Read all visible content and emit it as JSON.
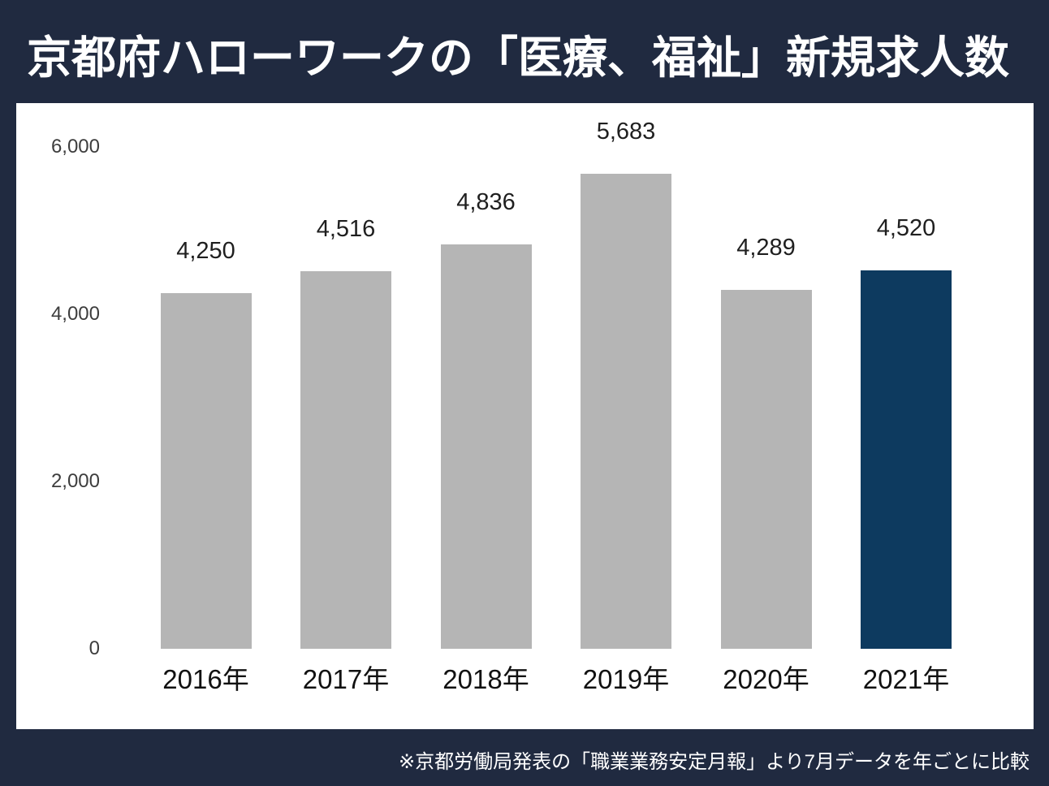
{
  "title": "京都府ハローワークの「医療、福祉」新規求人数",
  "footnote": "※京都労働局発表の「職業業務安定月報」より7月データを年ごとに比較",
  "colors": {
    "background": "#202a40",
    "panel": "#ffffff",
    "bar_default": "#b5b5b5",
    "bar_highlight": "#0d3a5f",
    "value_label": "#1f1f1f",
    "x_axis_label": "#111111",
    "y_axis_label": "#3d3d3d",
    "title_text": "#ffffff"
  },
  "chart_data": {
    "type": "bar",
    "title": "京都府ハローワークの「医療、福祉」新規求人数",
    "categories": [
      "2016年",
      "2017年",
      "2018年",
      "2019年",
      "2020年",
      "2021年"
    ],
    "values": [
      4250,
      4516,
      4836,
      5683,
      4289,
      4520
    ],
    "value_labels": [
      "4,250",
      "4,516",
      "4,836",
      "5,683",
      "4,289",
      "4,520"
    ],
    "highlight_category": "2021年",
    "highlight_index": 5,
    "y_ticks": [
      {
        "label": "6,000",
        "value": 6000
      },
      {
        "label": "4,000",
        "value": 4000
      },
      {
        "label": "2,000",
        "value": 2000
      },
      {
        "label": "0",
        "value": 0
      }
    ],
    "ylim": [
      0,
      6000
    ],
    "xlabel": "",
    "ylabel": "",
    "grid": false,
    "legend": false,
    "annotation": "※京都労働局発表の「職業業務安定月報」より7月データを年ごとに比較"
  }
}
